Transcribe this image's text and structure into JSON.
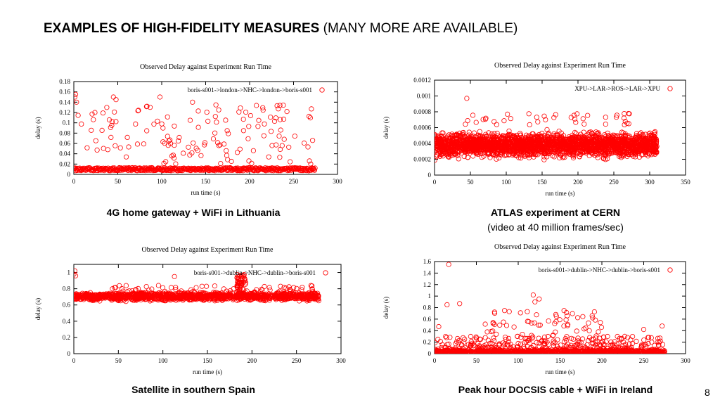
{
  "slide": {
    "title_bold": "EXAMPLES OF HIGH-FIDELITY MEASURES",
    "title_rest": " (MANY MORE ARE AVAILABLE)",
    "page_number": "8"
  },
  "chart_data": [
    {
      "type": "scatter",
      "title": "Observed Delay against Experiment Run Time",
      "xlabel": "run time (s)",
      "ylabel": "delay (s)",
      "legend": "boris-s001->london->NHC->london->boris-s001",
      "legend_position": "top-right",
      "xlim": [
        0,
        300
      ],
      "ylim": [
        0,
        0.18
      ],
      "xticks": [
        "0",
        "50",
        "100",
        "150",
        "200",
        "250",
        "300"
      ],
      "xtick_values": [
        0,
        50,
        100,
        150,
        200,
        250,
        300
      ],
      "yticks": [
        "0",
        "0.02",
        "0.04",
        "0.06",
        "0.08",
        "0.1",
        "0.12",
        "0.14",
        "0.16",
        "0.18"
      ],
      "ytick_values": [
        0,
        0.02,
        0.04,
        0.06,
        0.08,
        0.1,
        0.12,
        0.14,
        0.16,
        0.18
      ],
      "x_range_observed": [
        0,
        275
      ],
      "baseline_delay": 0.01,
      "spike_range": [
        0.02,
        0.16
      ],
      "point_color": "#ff0000",
      "caption": "4G home gateway + WiFi in Lithuania",
      "caption2": ""
    },
    {
      "type": "scatter",
      "title": "Observed Delay against Experiment Run Time",
      "xlabel": "run time (s)",
      "ylabel": "delay (s)",
      "legend": "XPU->LAR->ROS->LAR->XPU",
      "legend_position": "top-right",
      "xlim": [
        0,
        350
      ],
      "ylim": [
        0,
        0.0012
      ],
      "xticks": [
        "0",
        "50",
        "100",
        "150",
        "200",
        "250",
        "300",
        "350"
      ],
      "xtick_values": [
        0,
        50,
        100,
        150,
        200,
        250,
        300,
        350
      ],
      "yticks": [
        "0",
        "0.0002",
        "0.0004",
        "0.0006",
        "0.0008",
        "0.001",
        "0.0012"
      ],
      "ytick_values": [
        0,
        0.0002,
        0.0004,
        0.0006,
        0.0008,
        0.001,
        0.0012
      ],
      "x_range_observed": [
        0,
        310
      ],
      "baseline_delay": 0.00038,
      "spike_range": [
        0.0002,
        0.00098
      ],
      "point_color": "#ff0000",
      "caption": "ATLAS experiment at CERN",
      "caption2": "(video at 40 million frames/sec)"
    },
    {
      "type": "scatter",
      "title": "Observed Delay against Experiment Run Time",
      "xlabel": "run time (s)",
      "ylabel": "delay (s)",
      "legend": "boris-s001->dublin->NHC->dublin->boris-s001",
      "legend_position": "top-right",
      "xlim": [
        0,
        300
      ],
      "ylim": [
        0,
        1.1
      ],
      "xticks": [
        "0",
        "50",
        "100",
        "150",
        "200",
        "250",
        "300"
      ],
      "xtick_values": [
        0,
        50,
        100,
        150,
        200,
        250,
        300
      ],
      "yticks": [
        "0",
        "0.2",
        "0.4",
        "0.6",
        "0.8",
        "1"
      ],
      "ytick_values": [
        0,
        0.2,
        0.4,
        0.6,
        0.8,
        1.0
      ],
      "x_range_observed": [
        0,
        275
      ],
      "baseline_delay": 0.7,
      "spike_range": [
        0.6,
        1.0
      ],
      "point_color": "#ff0000",
      "caption": "Satellite in southern Spain",
      "caption2": ""
    },
    {
      "type": "scatter",
      "title": "Observed Delay against Experiment Run Time",
      "xlabel": "run time (s)",
      "ylabel": "delay (s)",
      "legend": "boris-s001->dublin->NHC->dublin->boris-s001",
      "legend_position": "top-right",
      "xlim": [
        0,
        300
      ],
      "ylim": [
        0,
        1.6
      ],
      "xticks": [
        "0",
        "50",
        "100",
        "150",
        "200",
        "250",
        "300"
      ],
      "xtick_values": [
        0,
        50,
        100,
        150,
        200,
        250,
        300
      ],
      "yticks": [
        "0",
        "0.2",
        "0.4",
        "0.6",
        "0.8",
        "1",
        "1.2",
        "1.4",
        "1.6"
      ],
      "ytick_values": [
        0,
        0.2,
        0.4,
        0.6,
        0.8,
        1.0,
        1.2,
        1.4,
        1.6
      ],
      "x_range_observed": [
        0,
        275
      ],
      "baseline_delay": 0.02,
      "spike_range": [
        0.05,
        1.55
      ],
      "point_color": "#ff0000",
      "caption": "Peak hour DOCSIS cable + WiFi in Ireland",
      "caption2": ""
    }
  ]
}
